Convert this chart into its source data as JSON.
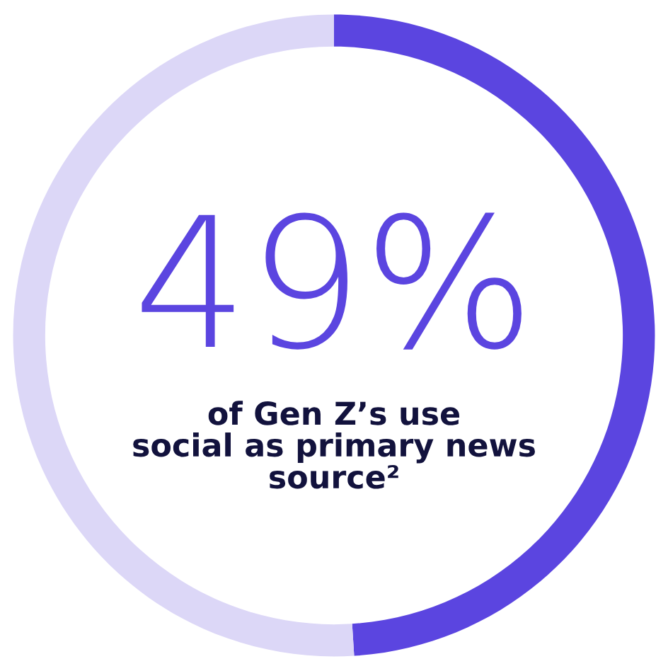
{
  "chart_data": {
    "type": "donut",
    "categories": [
      null,
      null
    ],
    "values": [
      49,
      51
    ],
    "colors": [
      "#5b45e0",
      "#dcd7f7"
    ],
    "value_labels": [
      "49%",
      null
    ],
    "annotations": [
      "of Gen Z’s use social as primary news source²"
    ]
  }
}
